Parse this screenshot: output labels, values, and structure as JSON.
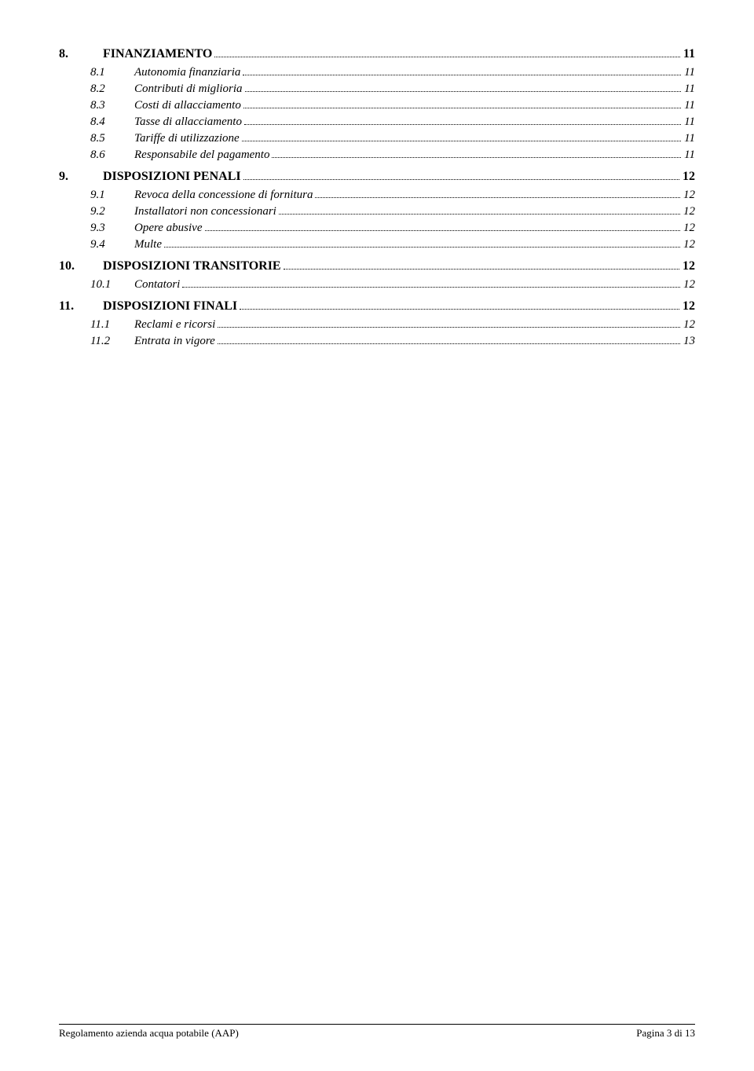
{
  "toc": [
    {
      "level": "main",
      "num": "8.",
      "title": "FINANZIAMENTO",
      "page": "11"
    },
    {
      "level": "sub",
      "num": "8.1",
      "title": "Autonomia finanziaria",
      "page": "11"
    },
    {
      "level": "sub",
      "num": "8.2",
      "title": "Contributi di miglioria",
      "page": "11"
    },
    {
      "level": "sub",
      "num": "8.3",
      "title": "Costi di allacciamento",
      "page": "11"
    },
    {
      "level": "sub",
      "num": "8.4",
      "title": "Tasse di allacciamento",
      "page": "11"
    },
    {
      "level": "sub",
      "num": "8.5",
      "title": "Tariffe di utilizzazione",
      "page": "11"
    },
    {
      "level": "sub",
      "num": "8.6",
      "title": "Responsabile del pagamento",
      "page": "11"
    },
    {
      "level": "main",
      "num": "9.",
      "title": "DISPOSIZIONI PENALI",
      "page": "12"
    },
    {
      "level": "sub",
      "num": "9.1",
      "title": "Revoca della concessione di fornitura",
      "page": "12"
    },
    {
      "level": "sub",
      "num": "9.2",
      "title": "Installatori non concessionari",
      "page": "12"
    },
    {
      "level": "sub",
      "num": "9.3",
      "title": "Opere abusive",
      "page": "12"
    },
    {
      "level": "sub",
      "num": "9.4",
      "title": "Multe",
      "page": "12"
    },
    {
      "level": "main",
      "num": "10.",
      "title": "DISPOSIZIONI TRANSITORIE",
      "page": "12"
    },
    {
      "level": "sub",
      "num": "10.1",
      "title": "Contatori",
      "page": "12"
    },
    {
      "level": "main",
      "num": "11.",
      "title": "DISPOSIZIONI FINALI",
      "page": "12"
    },
    {
      "level": "sub",
      "num": "11.1",
      "title": "Reclami e ricorsi",
      "page": "12"
    },
    {
      "level": "sub",
      "num": "11.2",
      "title": "Entrata in vigore",
      "page": "13"
    }
  ],
  "footer": {
    "left": "Regolamento azienda acqua potabile (AAP)",
    "right": "Pagina 3 di 13"
  }
}
